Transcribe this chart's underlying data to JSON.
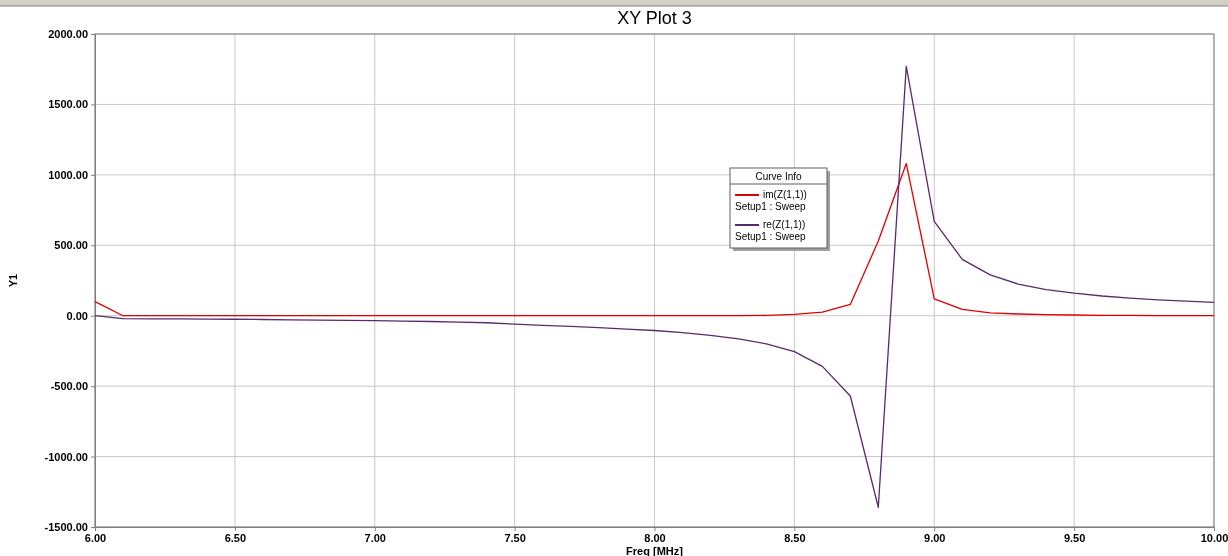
{
  "chart_data": {
    "type": "line",
    "title": "XY Plot 3",
    "xlabel": "Freq [MHz]",
    "ylabel": "Y1",
    "legend_title": "Curve Info",
    "legend": "top",
    "grid": true,
    "marker": "none",
    "line_style": "solid",
    "x": [
      6.0,
      6.1,
      6.2,
      6.3,
      6.4,
      6.5,
      6.6,
      6.7,
      6.8,
      6.9,
      7.0,
      7.1,
      7.2,
      7.3,
      7.4,
      7.5,
      7.6,
      7.7,
      7.8,
      7.9,
      8.0,
      8.1,
      8.2,
      8.3,
      8.4,
      8.5,
      8.6,
      8.7,
      8.8,
      8.9,
      9.0,
      9.1,
      9.2,
      9.3,
      9.4,
      9.5,
      9.6,
      9.7,
      9.8,
      9.9,
      10.0
    ],
    "xlim": [
      6,
      10
    ],
    "ylim": [
      -1500,
      2000
    ],
    "xticks": [
      {
        "value": 6,
        "label": "6.00"
      },
      {
        "value": 6.5,
        "label": "6.50"
      },
      {
        "value": 7,
        "label": "7.00"
      },
      {
        "value": 7.5,
        "label": "7.50"
      },
      {
        "value": 8,
        "label": "8.00"
      },
      {
        "value": 8.5,
        "label": "8.50"
      },
      {
        "value": 9,
        "label": "9.00"
      },
      {
        "value": 9.5,
        "label": "9.50"
      },
      {
        "value": 10,
        "label": "10.00"
      }
    ],
    "yticks": [
      {
        "value": -1500,
        "label": "-1500.00"
      },
      {
        "value": -1000,
        "label": "-1000.00"
      },
      {
        "value": -500,
        "label": "-500.00"
      },
      {
        "value": 0,
        "label": "0.00"
      },
      {
        "value": 500,
        "label": "500.00"
      },
      {
        "value": 1000,
        "label": "1000.00"
      },
      {
        "value": 1500,
        "label": "1500.00"
      },
      {
        "value": 2000,
        "label": "2000.00"
      }
    ],
    "series": [
      {
        "name": "im(Z(1,1))\nSetup1 : Sweep",
        "color": "#e00000",
        "values": [
          100,
          0,
          0,
          0,
          0,
          0,
          0,
          0,
          0,
          0,
          0,
          0,
          0,
          0,
          0,
          0,
          0,
          0,
          0,
          0,
          0,
          0,
          0,
          0,
          2,
          10,
          25,
          80,
          530,
          1080,
          120,
          45,
          20,
          12,
          8,
          5,
          3,
          2,
          1,
          0,
          0
        ]
      },
      {
        "name": "re(Z(1,1))\nSetup1 : Sweep",
        "color": "#5a2a6a",
        "values": [
          0,
          -20,
          -22,
          -23,
          -24,
          -25,
          -27,
          -29,
          -31,
          -33,
          -35,
          -38,
          -41,
          -45,
          -50,
          -60,
          -68,
          -76,
          -85,
          -95,
          -105,
          -120,
          -140,
          -165,
          -200,
          -255,
          -360,
          -570,
          -1360,
          1770,
          670,
          400,
          290,
          225,
          185,
          160,
          140,
          125,
          112,
          103,
          95
        ]
      }
    ]
  }
}
